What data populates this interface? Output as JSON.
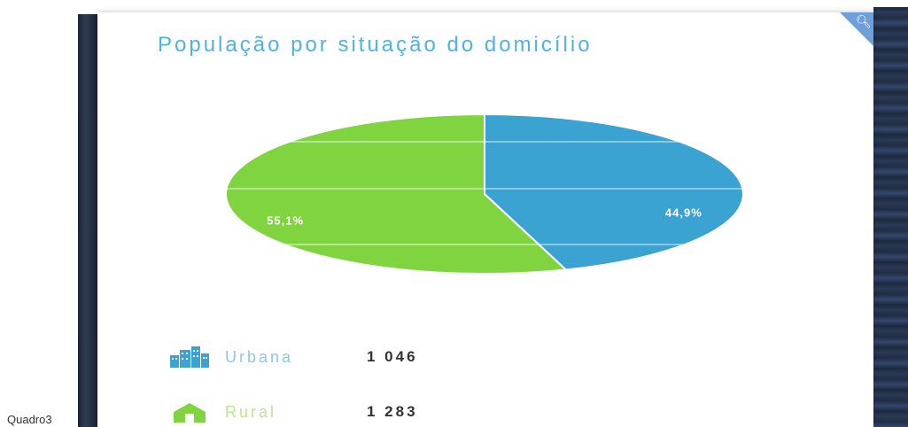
{
  "chart_data": {
    "type": "pie",
    "title": "População por situação do domicílio",
    "categories": [
      "Urbana",
      "Rural"
    ],
    "values": [
      1046,
      1283
    ],
    "percent_labels": [
      "44,9%",
      "55,1%"
    ],
    "colors": [
      "#3aa3d2",
      "#7fd43f"
    ],
    "legend_placement": "bottom-left"
  },
  "legend": {
    "urban": {
      "label": "Urbana",
      "value": "1 046",
      "icon": "buildings-icon"
    },
    "rural": {
      "label": "Rural",
      "value": "1 283",
      "icon": "rural-house-icon"
    }
  },
  "corner": {
    "icon": "zoom-in-icon"
  },
  "caption": "Quadro3"
}
